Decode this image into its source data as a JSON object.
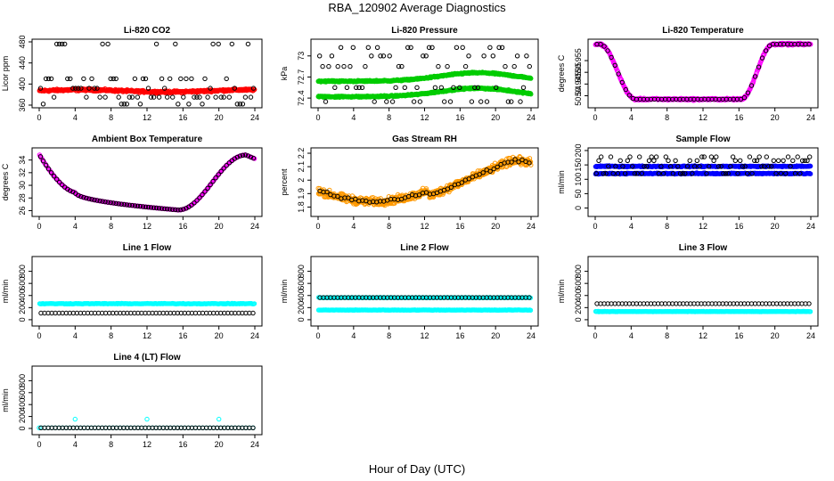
{
  "figure": {
    "title": "RBA_120902  Average Diagnostics",
    "xlabel": "Hour of Day (UTC)"
  },
  "chart_data": [
    {
      "type": "scatter",
      "title": "Li-820 CO2",
      "ylabel": "Licor ppm",
      "xlim": [
        0,
        24
      ],
      "ylim": [
        360,
        480
      ],
      "yticks": [
        360,
        400,
        440,
        480
      ],
      "xticks": [
        0,
        4,
        8,
        12,
        16,
        20,
        24
      ],
      "grid": false,
      "series": [
        {
          "color": "#ff0000",
          "pattern": "band",
          "base": 387,
          "amp": 2,
          "noise": 3,
          "n": 480
        },
        {
          "color": "#000000",
          "pattern": "sparse_levels",
          "levels": [
            362,
            375,
            392,
            410,
            476
          ],
          "n": 80
        }
      ]
    },
    {
      "type": "scatter",
      "title": "Li-820 Pressure",
      "ylabel": "kPa",
      "xlim": [
        0,
        24
      ],
      "ylim": [
        72.3,
        73.2
      ],
      "yticks": [
        72.4,
        72.7,
        73.0
      ],
      "xticks": [
        0,
        4,
        8,
        12,
        16,
        20,
        24
      ],
      "grid": false,
      "series": [
        {
          "color": "#00cc00",
          "pattern": "hump",
          "base": 72.64,
          "amp": 0.12,
          "center": 18,
          "noise": 0.015,
          "n": 480
        },
        {
          "color": "#00cc00",
          "pattern": "hump",
          "base": 72.42,
          "amp": 0.12,
          "center": 18,
          "noise": 0.015,
          "n": 480
        },
        {
          "color": "#000000",
          "pattern": "sparse_levels",
          "levels": [
            72.35,
            72.55,
            72.85,
            73.0,
            73.12
          ],
          "n": 70
        }
      ]
    },
    {
      "type": "scatter",
      "title": "Li-820 Temperature",
      "ylabel": "degrees C",
      "xlim": [
        0,
        24
      ],
      "ylim": [
        50.936,
        50.963
      ],
      "yticks": [
        50.94,
        50.945,
        50.95,
        50.955
      ],
      "xticks": [
        0,
        4,
        8,
        12,
        16,
        20,
        24
      ],
      "grid": false,
      "series": [
        {
          "color": "#ff00ff",
          "pattern": "valley",
          "high": 50.962,
          "low": 50.9385,
          "drop": [
            0.5,
            4.5
          ],
          "rise": [
            16.2,
            19.8
          ],
          "noise": 0.0006,
          "n": 480
        },
        {
          "color": "#000000",
          "pattern": "valley_sparse",
          "high": 50.962,
          "low": 50.9385,
          "drop": [
            0.5,
            4.5
          ],
          "rise": [
            16.2,
            19.8
          ],
          "n": 60
        }
      ]
    },
    {
      "type": "scatter",
      "title": "Ambient Box Temperature",
      "ylabel": "degrees C",
      "xlim": [
        0,
        24
      ],
      "ylim": [
        25.5,
        35.5
      ],
      "yticks": [
        26,
        28,
        30,
        32,
        34
      ],
      "xticks": [
        0,
        4,
        8,
        12,
        16,
        20,
        24
      ],
      "grid": false,
      "series": [
        {
          "color": "#ff00ff",
          "pattern": "ambient",
          "n": 300
        },
        {
          "color": "#000000",
          "pattern": "ambient",
          "n": 80
        }
      ]
    },
    {
      "type": "scatter",
      "title": "Gas Stream RH",
      "ylabel": "percent",
      "xlim": [
        0,
        24
      ],
      "ylim": [
        1.75,
        2.22
      ],
      "yticks": [
        1.8,
        1.9,
        2.0,
        2.1,
        2.2
      ],
      "xticks": [
        0,
        4,
        8,
        12,
        16,
        20,
        24
      ],
      "grid": false,
      "series": [
        {
          "color": "#ff9900",
          "pattern": "rh",
          "noise": 0.04,
          "n": 700
        },
        {
          "color": "#000000",
          "pattern": "rh",
          "noise": 0.02,
          "n": 60
        }
      ]
    },
    {
      "type": "scatter",
      "title": "Sample Flow",
      "ylabel": "ml/min",
      "xlim": [
        0,
        24
      ],
      "ylim": [
        -20,
        200
      ],
      "yticks": [
        0,
        50,
        100,
        150,
        200
      ],
      "xticks": [
        0,
        4,
        8,
        12,
        16,
        20,
        24
      ],
      "grid": false,
      "series": [
        {
          "color": "#0000ff",
          "pattern": "band",
          "base": 145,
          "amp": 0,
          "noise": 3,
          "n": 300
        },
        {
          "color": "#0000ff",
          "pattern": "band",
          "base": 120,
          "amp": 0,
          "noise": 3,
          "n": 300
        },
        {
          "color": "#000000",
          "pattern": "sparse_levels",
          "levels": [
            120,
            145,
            165,
            178
          ],
          "n": 90
        }
      ]
    },
    {
      "type": "scatter",
      "title": "Line 1 Flow",
      "ylabel": "ml/min",
      "xlim": [
        0,
        24
      ],
      "ylim": [
        -60,
        1000
      ],
      "yticks": [
        0,
        200,
        400,
        600,
        800
      ],
      "xticks": [
        0,
        4,
        8,
        12,
        16,
        20,
        24
      ],
      "grid": false,
      "series": [
        {
          "color": "#00ffff",
          "pattern": "band",
          "base": 265,
          "amp": 0,
          "noise": 8,
          "n": 260
        },
        {
          "color": "#000000",
          "pattern": "row",
          "value": 110,
          "n": 60
        }
      ]
    },
    {
      "type": "scatter",
      "title": "Line 2 Flow",
      "ylabel": "ml/min",
      "xlim": [
        0,
        24
      ],
      "ylim": [
        -60,
        1000
      ],
      "yticks": [
        0,
        200,
        400,
        600,
        800
      ],
      "xticks": [
        0,
        4,
        8,
        12,
        16,
        20,
        24
      ],
      "grid": false,
      "series": [
        {
          "color": "#00ffff",
          "pattern": "band",
          "base": 160,
          "amp": 0,
          "noise": 6,
          "n": 260
        },
        {
          "color": "#00ffff",
          "pattern": "band",
          "base": 365,
          "amp": 0,
          "noise": 6,
          "n": 200
        },
        {
          "color": "#000000",
          "pattern": "row",
          "value": 365,
          "n": 60
        }
      ]
    },
    {
      "type": "scatter",
      "title": "Line 3 Flow",
      "ylabel": "ml/min",
      "xlim": [
        0,
        24
      ],
      "ylim": [
        -60,
        1000
      ],
      "yticks": [
        0,
        200,
        400,
        600,
        800
      ],
      "xticks": [
        0,
        4,
        8,
        12,
        16,
        20,
        24
      ],
      "grid": false,
      "series": [
        {
          "color": "#00ffff",
          "pattern": "band",
          "base": 135,
          "amp": 0,
          "noise": 5,
          "n": 260
        },
        {
          "color": "#000000",
          "pattern": "row",
          "value": 265,
          "n": 60
        }
      ]
    },
    {
      "type": "scatter",
      "title": "Line 4 (LT) Flow",
      "ylabel": "ml/min",
      "xlim": [
        0,
        24
      ],
      "ylim": [
        -60,
        1000
      ],
      "yticks": [
        0,
        200,
        400,
        600,
        800
      ],
      "xticks": [
        0,
        4,
        8,
        12,
        16,
        20,
        24
      ],
      "grid": false,
      "series": [
        {
          "color": "#00ffff",
          "pattern": "row",
          "value": 10,
          "n": 60
        },
        {
          "color": "#00ffff",
          "pattern": "points",
          "x": [
            0,
            4,
            12,
            20
          ],
          "y": [
            10,
            155,
            155,
            155
          ]
        },
        {
          "color": "#000000",
          "pattern": "row",
          "value": 10,
          "n": 60
        }
      ]
    }
  ]
}
